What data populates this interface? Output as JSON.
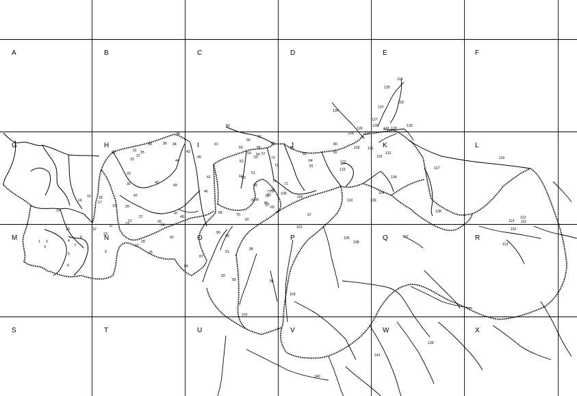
{
  "map": {
    "grid_columns": 7,
    "grid_rows": 5,
    "cell_letters": [
      "A",
      "B",
      "C",
      "D",
      "E",
      "F",
      "G",
      "H",
      "I",
      "J",
      "K",
      "L",
      "M",
      "N",
      "O",
      "P",
      "Q",
      "R",
      "S",
      "T",
      "U",
      "V",
      "W",
      "X"
    ],
    "region_numbers": [
      "1",
      "2",
      "3",
      "4",
      "5",
      "6",
      "7",
      "8",
      "9",
      "10",
      "11",
      "12",
      "13",
      "14",
      "15",
      "16",
      "17",
      "18",
      "19",
      "20",
      "21",
      "22",
      "23",
      "24",
      "25",
      "26",
      "27",
      "28",
      "29",
      "30",
      "31",
      "32",
      "33",
      "34",
      "35",
      "36",
      "37",
      "38",
      "39",
      "40",
      "41",
      "42",
      "43",
      "44",
      "45",
      "46",
      "47",
      "48",
      "49",
      "50",
      "51",
      "52",
      "53",
      "54",
      "55",
      "56",
      "57",
      "58",
      "59",
      "60",
      "61",
      "62",
      "63",
      "64",
      "65",
      "66",
      "67",
      "68",
      "69",
      "70",
      "71",
      "72",
      "73",
      "74",
      "75",
      "76",
      "77",
      "78",
      "79",
      "80",
      "81",
      "82",
      "83",
      "84",
      "85",
      "86",
      "87",
      "88",
      "89",
      "90",
      "91",
      "92",
      "93",
      "94",
      "95",
      "96",
      "97",
      "98",
      "99",
      "100",
      "101",
      "102",
      "103",
      "104",
      "105",
      "106",
      "107",
      "108",
      "109",
      "110",
      "111",
      "112",
      "113",
      "114",
      "115",
      "116",
      "117",
      "118",
      "119",
      "120",
      "121",
      "122",
      "123",
      "124",
      "125",
      "126",
      "127",
      "128",
      "129",
      "130",
      "131",
      "132",
      "133",
      "134",
      "135",
      "136",
      "137",
      "138",
      "139",
      "140",
      "141"
    ]
  }
}
